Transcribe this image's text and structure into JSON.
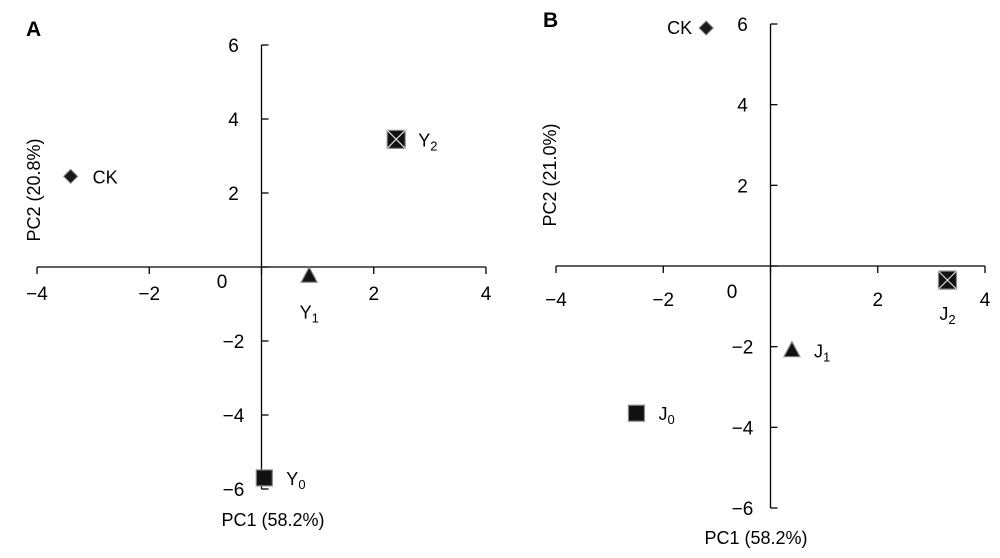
{
  "chart_data": [
    {
      "panel_label": "A",
      "type": "scatter",
      "xlabel": "PC1 (58.2%)",
      "ylabel": "PC2 (20.8%)",
      "xlim": [
        -4,
        4
      ],
      "ylim": [
        -6,
        6
      ],
      "xticks": [
        "−4",
        "−2",
        "2",
        "4"
      ],
      "yticks": [
        "6",
        "4",
        "2",
        "−2",
        "−4",
        "−6"
      ],
      "origin_label": "0",
      "points": [
        {
          "label": "CK",
          "sub": "",
          "x": -3.4,
          "y": 2.45,
          "marker": "diamond"
        },
        {
          "label": "Y",
          "sub": "2",
          "x": 2.4,
          "y": 3.45,
          "marker": "boxcross"
        },
        {
          "label": "Y",
          "sub": "1",
          "x": 0.85,
          "y": -0.25,
          "marker": "triangle"
        },
        {
          "label": "Y",
          "sub": "0",
          "x": 0.05,
          "y": -5.7,
          "marker": "square"
        }
      ]
    },
    {
      "panel_label": "B",
      "type": "scatter",
      "xlabel": "PC1 (58.2%)",
      "ylabel": "PC2 (21.0%)",
      "xlim": [
        -4,
        4
      ],
      "ylim": [
        -6,
        6
      ],
      "xticks": [
        "−4",
        "−2",
        "2",
        "4"
      ],
      "yticks": [
        "6",
        "4",
        "2",
        "−2",
        "−4",
        "−6"
      ],
      "origin_label": "0",
      "points": [
        {
          "label": "CK",
          "sub": "",
          "x": -1.2,
          "y": 5.9,
          "marker": "diamond"
        },
        {
          "label": "J",
          "sub": "2",
          "x": 3.3,
          "y": -0.35,
          "marker": "boxcross"
        },
        {
          "label": "J",
          "sub": "1",
          "x": 0.4,
          "y": -2.1,
          "marker": "triangle"
        },
        {
          "label": "J",
          "sub": "0",
          "x": -2.5,
          "y": -3.65,
          "marker": "square"
        }
      ]
    }
  ]
}
